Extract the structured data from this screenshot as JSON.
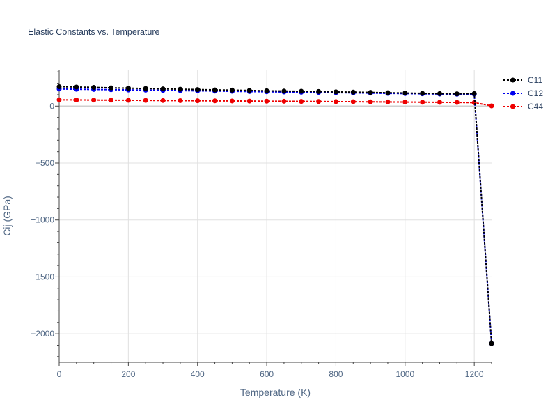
{
  "chart_data": {
    "type": "line",
    "title": "Elastic Constants vs. Temperature",
    "xlabel": "Temperature (K)",
    "ylabel": "Cij (GPa)",
    "xlim": [
      0,
      1250
    ],
    "ylim": [
      -2250,
      320
    ],
    "xticks": [
      0,
      200,
      400,
      600,
      800,
      1000,
      1200
    ],
    "yticks": [
      0,
      -500,
      -1000,
      -1500,
      -2000
    ],
    "ytick_labels": [
      "0",
      "−500",
      "−1000",
      "−1500",
      "−2000"
    ],
    "grid": true,
    "legend_position": "right",
    "x": [
      0,
      50,
      100,
      150,
      200,
      250,
      300,
      350,
      400,
      450,
      500,
      550,
      600,
      650,
      700,
      750,
      800,
      850,
      900,
      950,
      1000,
      1050,
      1100,
      1150,
      1200,
      1250
    ],
    "series": [
      {
        "name": "C11",
        "color": "#000000",
        "values": [
          170,
          167,
          164,
          160,
          157,
          154,
          151,
          148,
          145,
          142,
          140,
          137,
          134,
          132,
          130,
          128,
          125,
          123,
          120,
          117,
          115,
          112,
          110,
          108,
          110,
          -2085
        ]
      },
      {
        "name": "C12",
        "color": "#0000ee",
        "values": [
          150,
          148,
          146,
          144,
          142,
          140,
          138,
          136,
          134,
          132,
          130,
          128,
          126,
          124,
          122,
          120,
          118,
          116,
          114,
          112,
          110,
          108,
          106,
          104,
          105,
          -2085
        ]
      },
      {
        "name": "C44",
        "color": "#ee0000",
        "values": [
          55,
          54,
          53,
          52,
          51,
          50,
          49,
          48,
          47,
          46,
          45,
          44,
          43,
          42,
          41,
          40,
          39,
          38,
          37,
          36,
          35,
          34,
          33,
          32,
          30,
          2
        ]
      }
    ]
  }
}
